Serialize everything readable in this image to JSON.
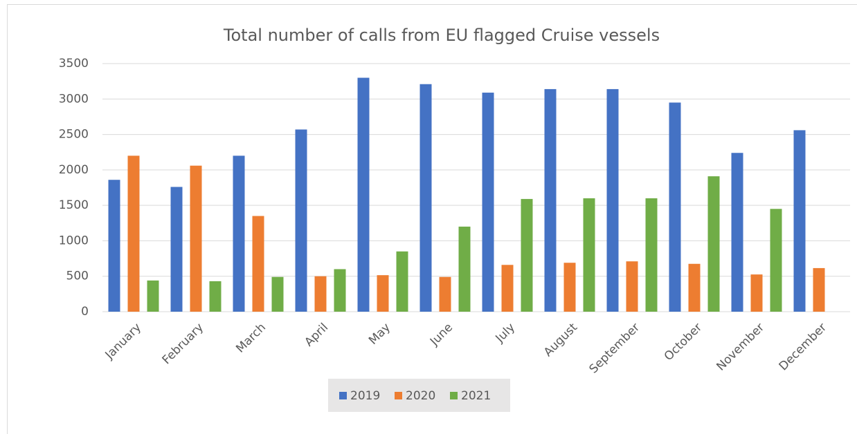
{
  "chart_data": {
    "type": "bar",
    "title": "Total number of calls from EU flagged Cruise vessels",
    "categories": [
      "January",
      "February",
      "March",
      "April",
      "May",
      "June",
      "July",
      "August",
      "September",
      "October",
      "November",
      "December"
    ],
    "series": [
      {
        "name": "2019",
        "color": "#4472c4",
        "values": [
          1860,
          1760,
          2200,
          2570,
          3300,
          3210,
          3090,
          3140,
          3140,
          2950,
          2240,
          2560
        ]
      },
      {
        "name": "2020",
        "color": "#ed7d31",
        "values": [
          2200,
          2060,
          1350,
          500,
          515,
          490,
          660,
          690,
          710,
          675,
          525,
          615
        ]
      },
      {
        "name": "2021",
        "color": "#70ad47",
        "values": [
          440,
          430,
          490,
          600,
          850,
          1200,
          1590,
          1600,
          1600,
          1910,
          1450,
          null
        ]
      }
    ],
    "ylim": [
      0,
      3500
    ],
    "yticks": [
      0,
      500,
      1000,
      1500,
      2000,
      2500,
      3000,
      3500
    ],
    "grid": true,
    "legend": "bottom"
  }
}
